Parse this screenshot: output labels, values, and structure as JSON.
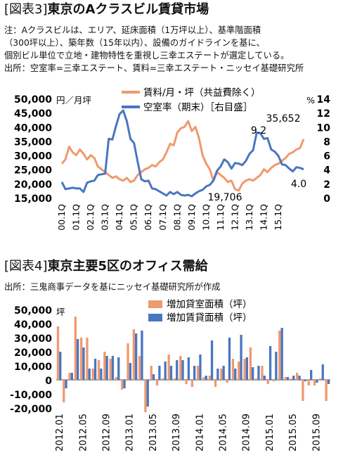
{
  "fig3": {
    "label": "[図表3]",
    "title": "東京のAクラスビル賃貸市場",
    "notes": [
      "注：Aクラスビルは、エリア、延床面積（1万坪以上）、基準階面積",
      "（300坪以上）、築年数（15年以内）、設備のガイドラインを基に、",
      "個別ビル単位で立地・建物特性を重視し三幸エステートが選定している。",
      "出所：空室率=三幸エステート、賃料=三幸エステート・ニッセイ基礎研究所"
    ]
  },
  "fig4": {
    "label": "[図表4]",
    "title": "東京主要5区のオフィス需給",
    "source": "出所：三鬼商事データを基にニッセイ基礎研究所が作成"
  },
  "chart_data": [
    {
      "type": "line",
      "y_unit_left": "円／月坪",
      "y_unit_right": "%",
      "ylim_left": [
        15000,
        50000
      ],
      "ylim_right": [
        0,
        14
      ],
      "yticks_left": [
        "50,000",
        "45,000",
        "40,000",
        "35,000",
        "30,000",
        "25,000",
        "20,000",
        "15,000"
      ],
      "yticks_right": [
        "14",
        "12",
        "10",
        "8",
        "6",
        "4",
        "2",
        "0"
      ],
      "xticks": [
        "00.1Q",
        "01.1Q",
        "02.1Q",
        "03.1Q",
        "04.1Q",
        "05.1Q",
        "06.1Q",
        "07.1Q",
        "08.1Q",
        "09.1Q",
        "10.1Q",
        "11.1Q",
        "12.1Q",
        "13.1Q",
        "14.1Q",
        "15.1Q"
      ],
      "legend_position": "top-right",
      "colors": {
        "rent": "#f0996e",
        "vacancy": "#4a76c0"
      },
      "series": [
        {
          "name": "賃料/月・坪（共益費除く）",
          "axis": "left",
          "values": [
            27000,
            28500,
            33000,
            31000,
            30000,
            32000,
            30500,
            28500,
            30000,
            29000,
            26000,
            25000,
            24000,
            23000,
            22000,
            22500,
            21500,
            21000,
            22000,
            20500,
            21000,
            23000,
            24000,
            25000,
            25500,
            26500,
            26000,
            27500,
            28500,
            31000,
            34000,
            33500,
            38000,
            39500,
            40000,
            42000,
            38500,
            40000,
            36000,
            30000,
            27000,
            25000,
            21000,
            24000,
            23000,
            22000,
            20500,
            21000,
            18000,
            17500,
            20000,
            21000,
            21500,
            21000,
            22000,
            23000,
            25000,
            24000,
            25500,
            26500,
            27000,
            28000,
            29000,
            30500,
            31000,
            32000,
            32500,
            35652
          ]
        },
        {
          "name": "空室率（期末）［右目盛］",
          "axis": "right",
          "values": [
            2.2,
            1.2,
            1.3,
            1.4,
            1.3,
            1.3,
            0.8,
            2.1,
            2.3,
            2.4,
            3.2,
            3.3,
            3.4,
            8.3,
            8.2,
            10.1,
            11.8,
            12.3,
            10.8,
            8.3,
            7.7,
            5.1,
            2.6,
            2.3,
            2.4,
            1.3,
            1.2,
            0.9,
            0.6,
            0.3,
            0.8,
            0.5,
            0.8,
            0.4,
            0.3,
            0.4,
            0.2,
            0.6,
            0.9,
            1.1,
            1.6,
            1.8,
            2.4,
            3.8,
            4.4,
            5.4,
            5.0,
            4.1,
            4.9,
            4.8,
            4.6,
            5.2,
            6.2,
            6.7,
            9.2,
            9.1,
            8.3,
            8.4,
            6.8,
            6.5,
            5.9,
            4.7,
            4.6,
            4.1,
            3.7,
            4.3,
            4.2,
            4.0
          ]
        }
      ],
      "annotations": [
        {
          "text": "9.2"
        },
        {
          "text": "35,652"
        },
        {
          "text": "4.0"
        },
        {
          "text": "19,706"
        }
      ]
    },
    {
      "type": "bar",
      "y_unit": "坪",
      "ylim": [
        -20000,
        50000
      ],
      "yticks": [
        "50,000",
        "40,000",
        "30,000",
        "20,000",
        "10,000",
        "0",
        "-10,000",
        "-20,000"
      ],
      "xticks": [
        "2012.01",
        "2012.05",
        "2012.09",
        "2013.01",
        "2013.05",
        "2013.09",
        "2014.01",
        "2014.05",
        "2014.09",
        "2015.01",
        "2015.05",
        "2015.09"
      ],
      "legend_position": "top-right",
      "colors": {
        "vacant": "#f0996e",
        "leased": "#4a76c0"
      },
      "series": [
        {
          "name": "増加貸室面積（坪）",
          "values": [
            38000,
            -16000,
            5000,
            45000,
            30000,
            30000,
            8000,
            14000,
            20000,
            15000,
            2000,
            -7000,
            26000,
            36000,
            17000,
            -23000,
            10000,
            -4000,
            1000,
            18000,
            1000,
            17000,
            -3000,
            -5000,
            10000,
            2000,
            3000,
            -5000,
            8000,
            -2000,
            15000,
            13000,
            15000,
            23000,
            1000,
            10000,
            -3000,
            -1000,
            35000,
            2000,
            1000,
            5000,
            -15000,
            -4000,
            -4000,
            1000,
            -15000
          ]
        },
        {
          "name": "増加賃貸面積（坪）",
          "values": [
            20000,
            -6000,
            5000,
            29000,
            23000,
            8000,
            15000,
            8000,
            17000,
            17000,
            16000,
            -6000,
            12000,
            33000,
            35000,
            -19000,
            4000,
            10000,
            13000,
            10000,
            14000,
            14000,
            16000,
            10000,
            18000,
            3000,
            28000,
            8000,
            10000,
            30000,
            8000,
            32000,
            16000,
            9000,
            10000,
            3000,
            24000,
            20000,
            37000,
            2000,
            3000,
            3000,
            -1000,
            7000,
            -2000,
            11000,
            -3000
          ]
        }
      ]
    }
  ]
}
